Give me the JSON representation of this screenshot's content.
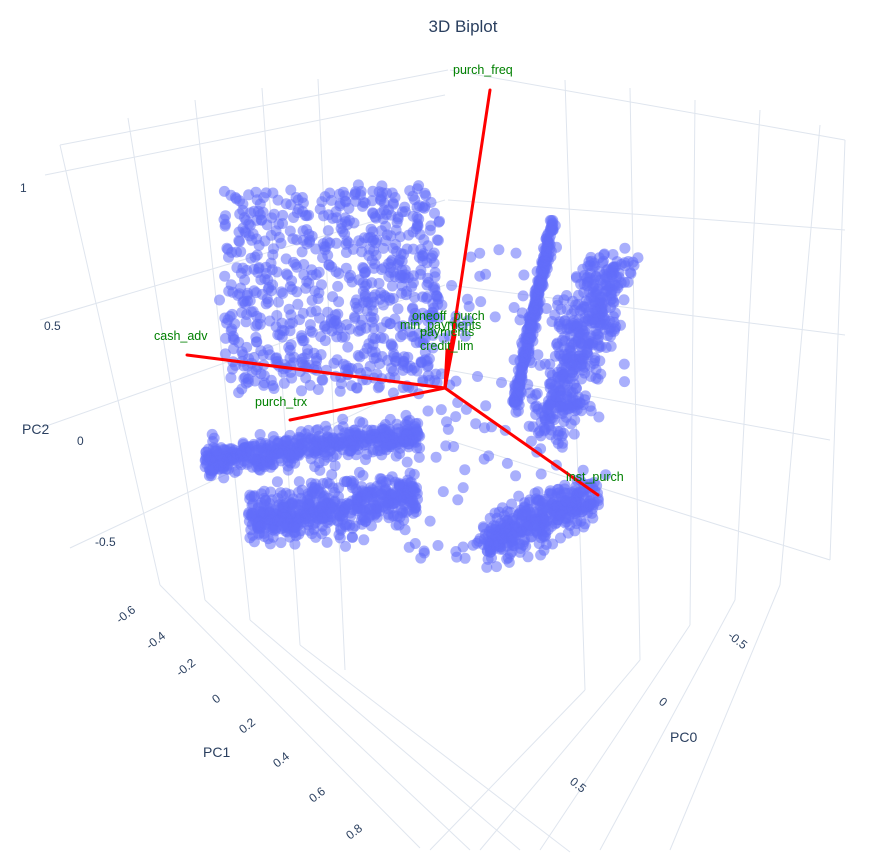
{
  "chart_data": {
    "type": "scatter",
    "title": "3D Biplot",
    "axes": {
      "x": {
        "label": "PC0",
        "ticks": [
          -0.5,
          0,
          0.5
        ]
      },
      "y": {
        "label": "PC1",
        "ticks": [
          -0.6,
          -0.4,
          -0.2,
          0,
          0.2,
          0.4,
          0.6,
          0.8
        ]
      },
      "z": {
        "label": "PC2",
        "ticks": [
          -0.5,
          0,
          0.5,
          1
        ]
      }
    },
    "grid": true,
    "marker_color": "#636efa",
    "loading_color": "#ff0000",
    "label_color": "#008000",
    "loadings": [
      {
        "label": "purch_freq"
      },
      {
        "label": "cash_adv"
      },
      {
        "label": "purch_trx"
      },
      {
        "label": "inst_purch"
      },
      {
        "label": "oneoff_purch"
      },
      {
        "label": "min_payments"
      },
      {
        "label": "payments"
      },
      {
        "label": "credit_lim"
      }
    ]
  }
}
